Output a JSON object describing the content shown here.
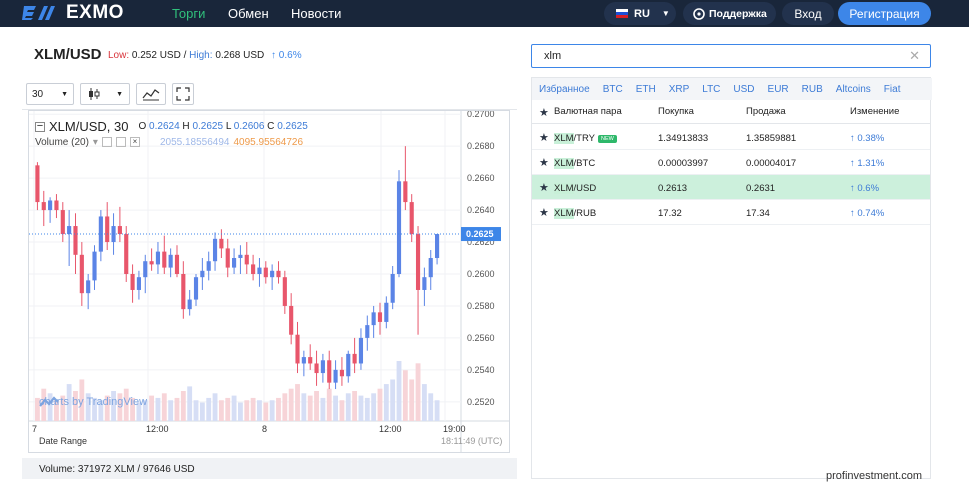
{
  "header": {
    "logo_text": "EXMO",
    "nav": [
      "Торги",
      "Обмен",
      "Новости"
    ],
    "lang": "RU",
    "support": "Поддержка",
    "login": "Вход",
    "register": "Регистрация",
    "colors": {
      "bg": "#19263a",
      "active": "#30c07c",
      "register": "#3d86e8"
    }
  },
  "pair": {
    "title": "XLM/USD",
    "low_label": "Low:",
    "low": "0.252 USD",
    "separator": "/",
    "high_label": "High:",
    "high": "0.268 USD",
    "change": "↑ 0.6%"
  },
  "chart": {
    "interval": "30",
    "symbol": "XLM/USD, 30",
    "o_label": "O",
    "o": "0.2624",
    "h_label": "H",
    "h": "0.2625",
    "l_label": "L",
    "l": "0.2606",
    "c_label": "C",
    "c": "0.2625",
    "volume_label": "Volume (20)",
    "volume_a": "2055.18556494",
    "volume_b": "4095.95564726",
    "tv_badge": "charts by TradingView",
    "date_range": "Date Range",
    "timestamp": "18:11:49 (UTC)"
  },
  "chart_data": {
    "type": "candlestick",
    "y_ticks": [
      "0.2700",
      "0.2680",
      "0.2660",
      "0.2640",
      "0.2620",
      "0.2600",
      "0.2580",
      "0.2560",
      "0.2540",
      "0.2520"
    ],
    "ylim": [
      0.2508,
      0.2702
    ],
    "x_ticks": [
      "7",
      "12:00",
      "8",
      "12:00",
      "19:00"
    ],
    "last_price": "0.2625",
    "candles": [
      [
        0.2668,
        0.267,
        0.264,
        0.2645
      ],
      [
        0.2645,
        0.2652,
        0.263,
        0.264
      ],
      [
        0.264,
        0.2648,
        0.2632,
        0.2646
      ],
      [
        0.2646,
        0.265,
        0.2635,
        0.264
      ],
      [
        0.264,
        0.2645,
        0.262,
        0.2625
      ],
      [
        0.2625,
        0.264,
        0.2605,
        0.263
      ],
      [
        0.263,
        0.2638,
        0.26,
        0.2612
      ],
      [
        0.2612,
        0.262,
        0.258,
        0.2588
      ],
      [
        0.2588,
        0.26,
        0.2578,
        0.2596
      ],
      [
        0.2596,
        0.2618,
        0.259,
        0.2614
      ],
      [
        0.2614,
        0.264,
        0.2608,
        0.2636
      ],
      [
        0.2636,
        0.2645,
        0.2615,
        0.262
      ],
      [
        0.262,
        0.2638,
        0.2612,
        0.263
      ],
      [
        0.263,
        0.2642,
        0.262,
        0.2625
      ],
      [
        0.2625,
        0.263,
        0.2595,
        0.26
      ],
      [
        0.26,
        0.2606,
        0.2582,
        0.259
      ],
      [
        0.259,
        0.2602,
        0.2584,
        0.2598
      ],
      [
        0.2598,
        0.2612,
        0.2588,
        0.2608
      ],
      [
        0.2608,
        0.2616,
        0.2602,
        0.2606
      ],
      [
        0.2606,
        0.262,
        0.26,
        0.2614
      ],
      [
        0.2614,
        0.2624,
        0.26,
        0.2604
      ],
      [
        0.2604,
        0.2616,
        0.2598,
        0.2612
      ],
      [
        0.2612,
        0.2618,
        0.2598,
        0.26
      ],
      [
        0.26,
        0.2608,
        0.2572,
        0.2578
      ],
      [
        0.2578,
        0.259,
        0.2574,
        0.2584
      ],
      [
        0.2584,
        0.26,
        0.258,
        0.2598
      ],
      [
        0.2598,
        0.261,
        0.259,
        0.2602
      ],
      [
        0.2602,
        0.2614,
        0.2596,
        0.2608
      ],
      [
        0.2608,
        0.2626,
        0.2602,
        0.2622
      ],
      [
        0.2622,
        0.2628,
        0.261,
        0.2616
      ],
      [
        0.2616,
        0.2622,
        0.2598,
        0.2604
      ],
      [
        0.2604,
        0.2616,
        0.26,
        0.261
      ],
      [
        0.261,
        0.2618,
        0.26,
        0.2612
      ],
      [
        0.2612,
        0.262,
        0.26,
        0.2606
      ],
      [
        0.2606,
        0.2612,
        0.2596,
        0.26
      ],
      [
        0.26,
        0.261,
        0.2592,
        0.2604
      ],
      [
        0.2604,
        0.2608,
        0.2594,
        0.2598
      ],
      [
        0.2598,
        0.2606,
        0.259,
        0.2602
      ],
      [
        0.2602,
        0.2608,
        0.2594,
        0.2598
      ],
      [
        0.2598,
        0.2602,
        0.2575,
        0.258
      ],
      [
        0.258,
        0.2588,
        0.2556,
        0.2562
      ],
      [
        0.2562,
        0.257,
        0.2538,
        0.2544
      ],
      [
        0.2544,
        0.2552,
        0.2536,
        0.2548
      ],
      [
        0.2548,
        0.2556,
        0.254,
        0.2544
      ],
      [
        0.2544,
        0.2552,
        0.253,
        0.2538
      ],
      [
        0.2538,
        0.255,
        0.2532,
        0.2546
      ],
      [
        0.2546,
        0.2552,
        0.2528,
        0.2532
      ],
      [
        0.2532,
        0.2546,
        0.2528,
        0.254
      ],
      [
        0.254,
        0.2548,
        0.253,
        0.2536
      ],
      [
        0.2536,
        0.2552,
        0.2532,
        0.255
      ],
      [
        0.255,
        0.256,
        0.2538,
        0.2544
      ],
      [
        0.2544,
        0.2566,
        0.254,
        0.256
      ],
      [
        0.256,
        0.2574,
        0.2552,
        0.2568
      ],
      [
        0.2568,
        0.258,
        0.256,
        0.2576
      ],
      [
        0.2576,
        0.2582,
        0.2562,
        0.257
      ],
      [
        0.257,
        0.2586,
        0.2566,
        0.2582
      ],
      [
        0.2582,
        0.2605,
        0.2578,
        0.26
      ],
      [
        0.26,
        0.2665,
        0.2598,
        0.2658
      ],
      [
        0.2658,
        0.268,
        0.264,
        0.2645
      ],
      [
        0.2645,
        0.265,
        0.262,
        0.2625
      ],
      [
        0.2625,
        0.263,
        0.2562,
        0.259
      ],
      [
        0.259,
        0.2604,
        0.258,
        0.2598
      ],
      [
        0.2598,
        0.2615,
        0.259,
        0.261
      ],
      [
        0.261,
        0.2625,
        0.2606,
        0.2625
      ]
    ],
    "volumes": [
      10,
      14,
      12,
      9,
      11,
      16,
      13,
      18,
      12,
      10,
      9,
      11,
      13,
      12,
      14,
      10,
      8,
      9,
      11,
      10,
      12,
      9,
      10,
      13,
      15,
      9,
      8,
      10,
      12,
      9,
      10,
      11,
      8,
      9,
      10,
      9,
      8,
      9,
      10,
      12,
      14,
      16,
      12,
      11,
      13,
      10,
      14,
      11,
      9,
      12,
      13,
      11,
      10,
      12,
      14,
      16,
      18,
      26,
      22,
      18,
      25,
      16,
      12,
      9
    ],
    "colors": {
      "up": "#5b84e6",
      "down": "#e8566b",
      "vol_up": "#d6def5",
      "vol_down": "#f7d4d8",
      "last": "#3d86e8"
    }
  },
  "volume_footer": "Volume: 371972 XLM / 97646 USD",
  "search": {
    "value": "xlm"
  },
  "markets": {
    "tabs": [
      "Избранное",
      "BTC",
      "ETH",
      "XRP",
      "LTC",
      "USD",
      "EUR",
      "RUB",
      "Altcoins",
      "Fiat"
    ],
    "columns": [
      "Валютная пара",
      "Покупка",
      "Продажа",
      "Изменение"
    ],
    "rows": [
      {
        "base": "XLM",
        "quote": "/TRY",
        "buy": "1.34913833",
        "sell": "1.35859881",
        "change": "↑ 0.38%",
        "badge": "NEW",
        "selected": false
      },
      {
        "base": "XLM",
        "quote": "/BTC",
        "buy": "0.00003997",
        "sell": "0.00004017",
        "change": "↑ 1.31%",
        "badge": "",
        "selected": false
      },
      {
        "base": "XLM",
        "quote": "/USD",
        "buy": "0.2613",
        "sell": "0.2631",
        "change": "↑ 0.6%",
        "badge": "",
        "selected": true
      },
      {
        "base": "XLM",
        "quote": "/RUB",
        "buy": "17.32",
        "sell": "17.34",
        "change": "↑ 0.74%",
        "badge": "",
        "selected": false
      }
    ]
  },
  "watermark": "profinvestment.com"
}
